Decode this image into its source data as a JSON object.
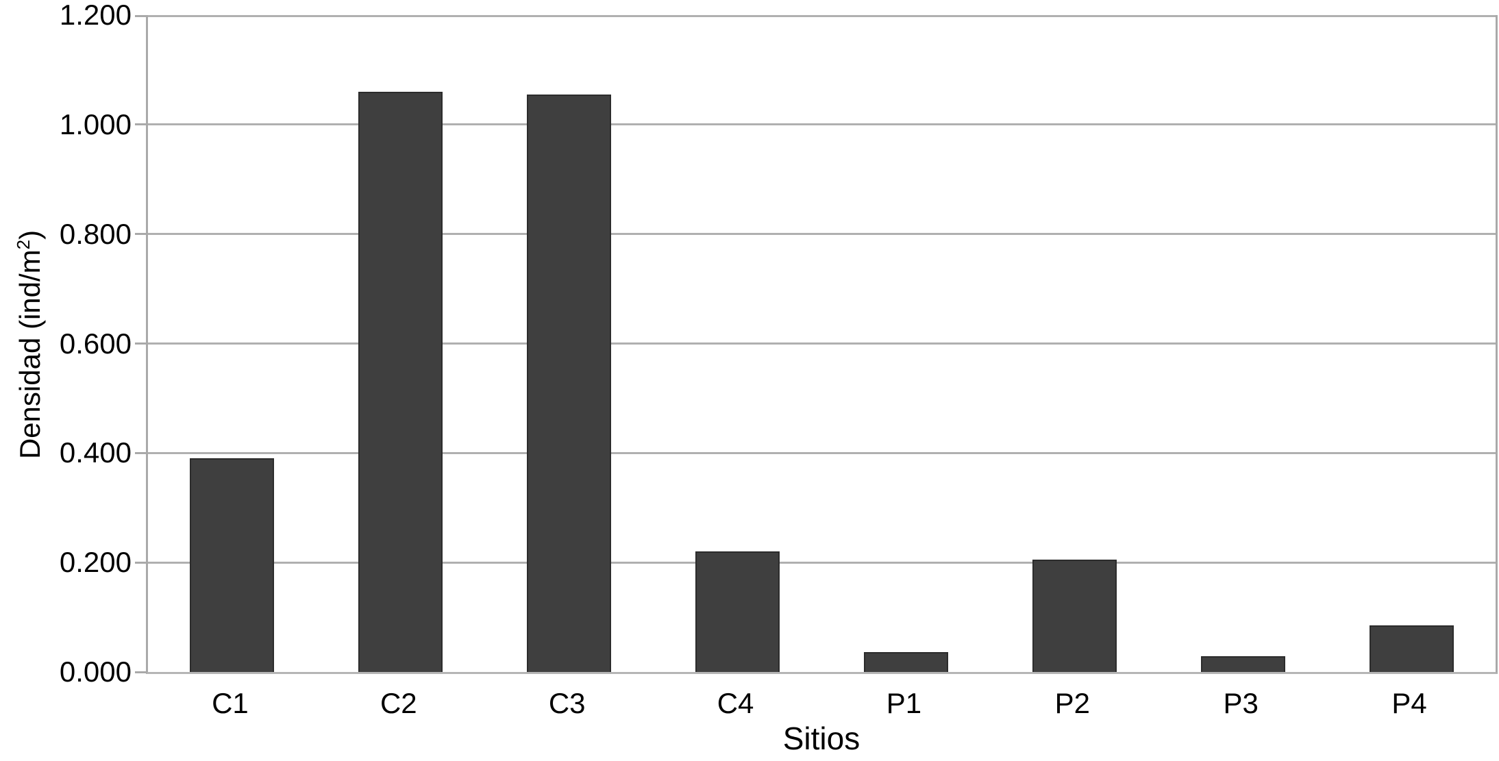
{
  "chart_data": {
    "type": "bar",
    "title": "",
    "categories": [
      "C1",
      "C2",
      "C3",
      "C4",
      "P1",
      "P2",
      "P3",
      "P4"
    ],
    "values": [
      0.39,
      1.06,
      1.055,
      0.22,
      0.036,
      0.205,
      0.029,
      0.085
    ],
    "series": [
      {
        "name": "Densidad",
        "values": [
          0.39,
          1.06,
          1.055,
          0.22,
          0.036,
          0.205,
          0.029,
          0.085
        ]
      }
    ],
    "xlabel": "Sitios",
    "ylabel": "Densidad (ind/m²)",
    "ylabel_parts": {
      "prefix": "Densidad (ind/m",
      "sup": "2",
      "suffix": ")"
    },
    "ylim": [
      0,
      1.2
    ],
    "ytick_values": [
      0.0,
      0.2,
      0.4,
      0.6,
      0.8,
      1.0,
      1.2
    ],
    "ytick_labels": [
      "0.000",
      "0.200",
      "0.400",
      "0.600",
      "0.800",
      "1.000",
      "1.200"
    ],
    "grid": true,
    "grid_axis": "y",
    "legend": false,
    "legend_position": "none",
    "bar_gap_ratio": 0.5,
    "colors": {
      "bar_fill": "#3f3f3f",
      "bar_border": "#2c2c2c",
      "gridline": "#b0b0b0",
      "axis_line": "#a9a9a9",
      "text": "#000000",
      "background": "#ffffff"
    }
  }
}
